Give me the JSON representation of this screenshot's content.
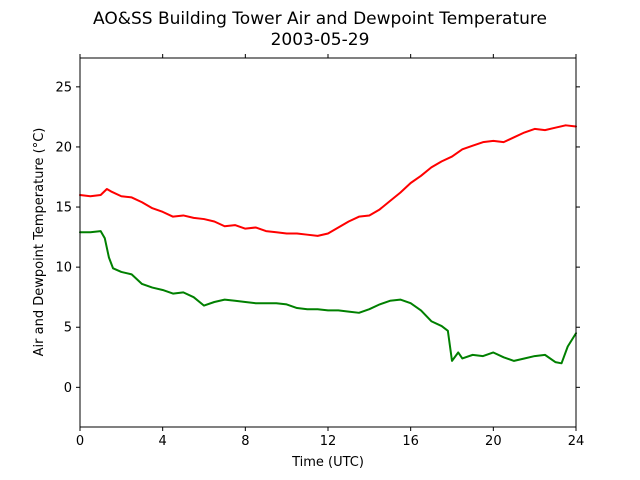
{
  "chart_data": {
    "type": "line",
    "title": "AO&SS Building Tower Air and Dewpoint Temperature",
    "subtitle": "2003-05-29",
    "xlabel": "Time (UTC)",
    "ylabel": "Air and Dewpoint Temperature (°C)",
    "xlim": [
      0,
      24
    ],
    "ylim": [
      -3.3,
      27.4
    ],
    "xticks": [
      0,
      4,
      8,
      12,
      16,
      20,
      24
    ],
    "yticks": [
      0,
      5,
      10,
      15,
      20,
      25
    ],
    "grid": false,
    "legend": "none",
    "series": [
      {
        "color": "#ff0000",
        "x": [
          0,
          0.5,
          1.0,
          1.3,
          1.5,
          2.0,
          2.5,
          3.0,
          3.5,
          4.0,
          4.5,
          5.0,
          5.5,
          6.0,
          6.5,
          7.0,
          7.5,
          8.0,
          8.5,
          9.0,
          9.5,
          10.0,
          10.5,
          11.0,
          11.5,
          12.0,
          12.5,
          13.0,
          13.5,
          14.0,
          14.5,
          15.0,
          15.5,
          16.0,
          16.5,
          17.0,
          17.5,
          18.0,
          18.5,
          19.0,
          19.5,
          20.0,
          20.5,
          21.0,
          21.5,
          22.0,
          22.5,
          23.0,
          23.5,
          24.0
        ],
        "values": [
          16.0,
          15.9,
          16.0,
          16.5,
          16.3,
          15.9,
          15.8,
          15.4,
          14.9,
          14.6,
          14.2,
          14.3,
          14.1,
          14.0,
          13.8,
          13.4,
          13.5,
          13.2,
          13.3,
          13.0,
          12.9,
          12.8,
          12.8,
          12.7,
          12.6,
          12.8,
          13.3,
          13.8,
          14.2,
          14.3,
          14.8,
          15.5,
          16.2,
          17.0,
          17.6,
          18.3,
          18.8,
          19.2,
          19.8,
          20.1,
          20.4,
          20.5,
          20.4,
          20.8,
          21.2,
          21.5,
          21.4,
          21.6,
          21.8,
          21.7
        ]
      },
      {
        "color": "#008000",
        "x": [
          0,
          0.5,
          1.0,
          1.2,
          1.4,
          1.6,
          2.0,
          2.5,
          3.0,
          3.5,
          4.0,
          4.5,
          5.0,
          5.5,
          6.0,
          6.5,
          7.0,
          7.5,
          8.0,
          8.5,
          9.0,
          9.5,
          10.0,
          10.5,
          11.0,
          11.5,
          12.0,
          12.5,
          13.0,
          13.5,
          14.0,
          14.5,
          15.0,
          15.5,
          16.0,
          16.5,
          17.0,
          17.5,
          17.8,
          18.0,
          18.3,
          18.5,
          19.0,
          19.5,
          20.0,
          20.5,
          21.0,
          21.5,
          22.0,
          22.5,
          23.0,
          23.3,
          23.6,
          24.0
        ],
        "values": [
          12.9,
          12.9,
          13.0,
          12.4,
          10.8,
          9.9,
          9.6,
          9.4,
          8.6,
          8.3,
          8.1,
          7.8,
          7.9,
          7.5,
          6.8,
          7.1,
          7.3,
          7.2,
          7.1,
          7.0,
          7.0,
          7.0,
          6.9,
          6.6,
          6.5,
          6.5,
          6.4,
          6.4,
          6.3,
          6.2,
          6.5,
          6.9,
          7.2,
          7.3,
          7.0,
          6.4,
          5.5,
          5.1,
          4.7,
          2.2,
          2.9,
          2.4,
          2.7,
          2.6,
          2.9,
          2.5,
          2.2,
          2.4,
          2.6,
          2.7,
          2.1,
          2.0,
          3.4,
          4.5
        ]
      }
    ]
  }
}
